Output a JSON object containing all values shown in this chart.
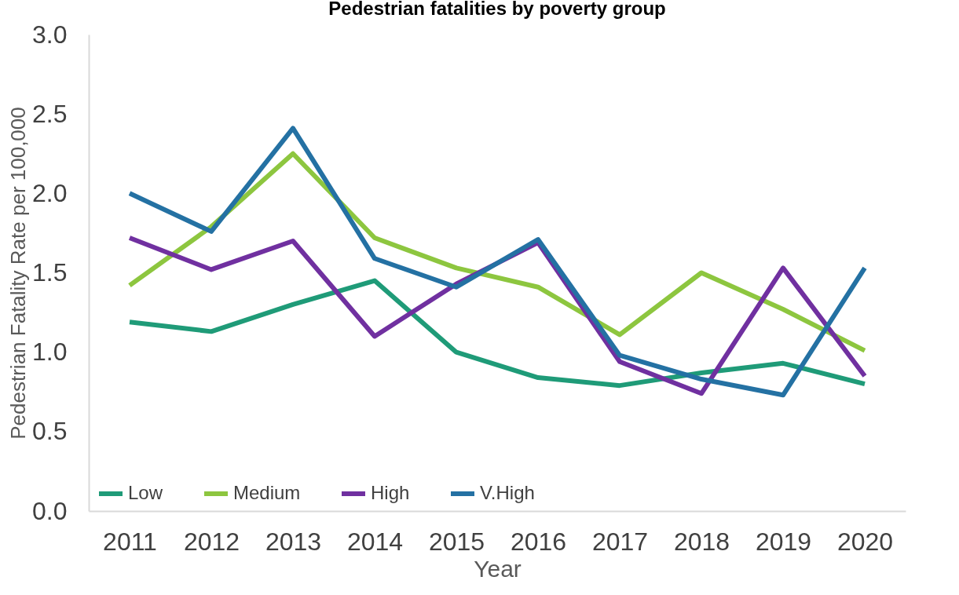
{
  "chart_data": {
    "type": "line",
    "title": "Pedestrian fatalities by poverty group",
    "xlabel": "Year",
    "ylabel": "Pedestrian Fatality Rate per 100,000",
    "categories": [
      "2011",
      "2012",
      "2013",
      "2014",
      "2015",
      "2016",
      "2017",
      "2018",
      "2019",
      "2020"
    ],
    "series": [
      {
        "name": "Low",
        "color": "#1f9b78",
        "values": [
          1.19,
          1.13,
          1.3,
          1.45,
          1.0,
          0.84,
          0.79,
          0.87,
          0.93,
          0.8
        ]
      },
      {
        "name": "Medium",
        "color": "#8dc63f",
        "values": [
          1.42,
          1.79,
          2.25,
          1.72,
          1.53,
          1.41,
          1.11,
          1.5,
          1.27,
          1.01
        ]
      },
      {
        "name": "High",
        "color": "#7030a0",
        "values": [
          1.72,
          1.52,
          1.7,
          1.1,
          1.43,
          1.69,
          0.94,
          0.74,
          1.53,
          0.85
        ]
      },
      {
        "name": "V.High",
        "color": "#2471a3",
        "values": [
          2.0,
          1.76,
          2.41,
          1.59,
          1.41,
          1.71,
          0.98,
          0.83,
          0.73,
          1.53
        ]
      }
    ],
    "ylim": [
      0,
      3
    ],
    "yticks": [
      {
        "value": 0,
        "label": "0.0"
      },
      0.5,
      {
        "value": 1,
        "label": "1.0"
      },
      1.5,
      {
        "value": 2,
        "label": "2.0"
      },
      2.5,
      {
        "value": 3,
        "label": "3.0"
      }
    ],
    "grid": false,
    "legend": "bottom left",
    "marker": "none",
    "line_style": "solid"
  }
}
